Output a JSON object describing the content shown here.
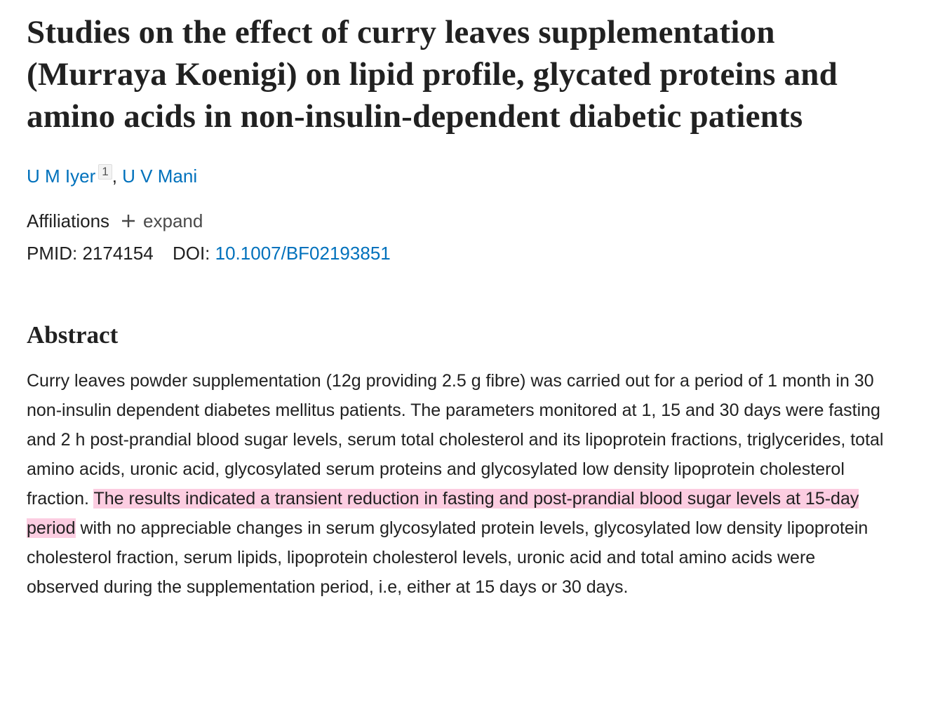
{
  "article": {
    "title": "Studies on the effect of curry leaves supplementation (Murraya Koenigi) on lipid profile, glycated proteins and amino acids in non-insulin-dependent diabetic patients",
    "authors": [
      {
        "name": "U M Iyer",
        "affiliation_ref": "1"
      },
      {
        "name": "U V Mani"
      }
    ],
    "author_separator": ",",
    "affiliations": {
      "label": "Affiliations",
      "toggle": "expand"
    },
    "identifiers": {
      "pmid_label": "PMID:",
      "pmid": "2174154",
      "doi_label": "DOI:",
      "doi": "10.1007/BF02193851"
    },
    "abstract": {
      "heading": "Abstract",
      "text_before": "Curry leaves powder supplementation (12g providing 2.5 g fibre) was carried out for a period of 1 month in 30 non-insulin dependent diabetes mellitus patients. The parameters monitored at 1, 15 and 30 days were fasting and 2 h post-prandial blood sugar levels, serum total cholesterol and its lipoprotein fractions, triglycerides, total amino acids, uronic acid, glycosylated serum proteins and glycosylated low density lipoprotein cholesterol fraction.",
      "text_highlighted": "The results indicated a transient reduction in fasting and post-prandial blood sugar levels at 15-day period",
      "text_after": "with no appreciable changes in serum glycosylated protein levels, glycosylated low density lipoprotein cholesterol fraction, serum lipids, lipoprotein cholesterol levels, uronic acid and total amino acids were observed during the supplementation period, i.e, either at 15 days or 30 days."
    }
  }
}
